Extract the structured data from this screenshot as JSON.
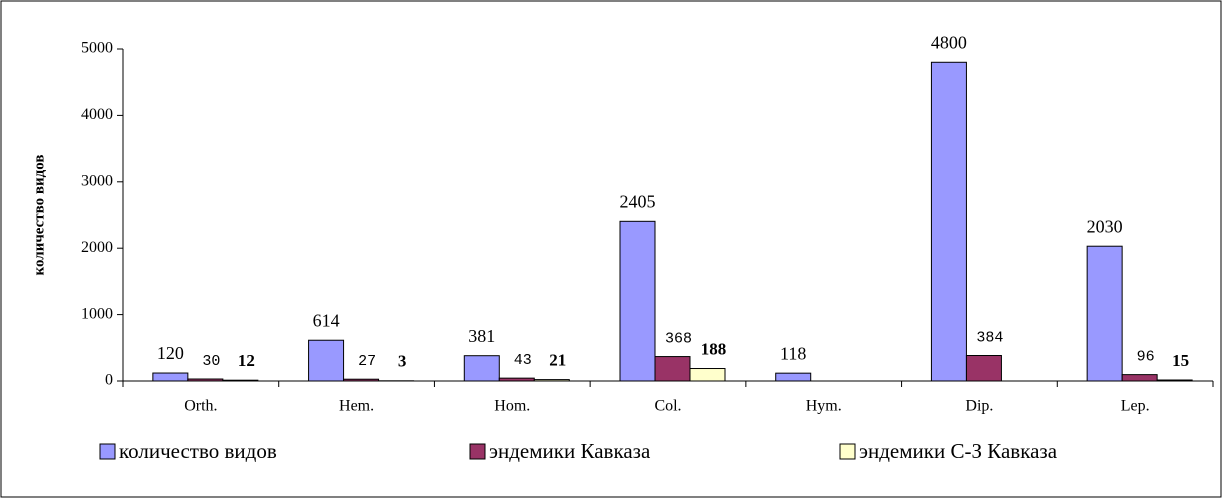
{
  "chart_data": {
    "type": "bar",
    "ylabel": "количество видов",
    "categories": [
      "Orth.",
      "Hem.",
      "Hom.",
      "Col.",
      "Hym.",
      "Dip.",
      "Lep."
    ],
    "series": [
      {
        "name": "количество видов",
        "color": "#9999ff",
        "values": [
          120,
          614,
          381,
          2405,
          118,
          4800,
          2030
        ]
      },
      {
        "name": "эндемики Кавказа",
        "color": "#993366",
        "values": [
          30,
          27,
          43,
          368,
          null,
          384,
          96
        ]
      },
      {
        "name": "эндемики С-З Кавказа",
        "color": "#ffffcc",
        "values": [
          12,
          3,
          21,
          188,
          null,
          null,
          15
        ]
      }
    ],
    "ylim": [
      0,
      5000
    ],
    "yticks": [
      0,
      1000,
      2000,
      3000,
      4000,
      5000
    ],
    "grid": false,
    "legend": "bottom"
  }
}
